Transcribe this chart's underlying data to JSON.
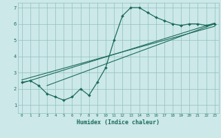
{
  "xlabel": "Humidex (Indice chaleur)",
  "bg_color": "#cce8e8",
  "grid_color": "#8fbfbf",
  "line_color": "#1a6b5a",
  "xlim": [
    -0.5,
    23.5
  ],
  "ylim": [
    0.5,
    7.3
  ],
  "xticks": [
    0,
    1,
    2,
    3,
    4,
    5,
    6,
    7,
    8,
    9,
    10,
    11,
    12,
    13,
    14,
    15,
    16,
    17,
    18,
    19,
    20,
    21,
    22,
    23
  ],
  "yticks": [
    1,
    2,
    3,
    4,
    5,
    6,
    7
  ],
  "main_x": [
    0,
    1,
    2,
    3,
    4,
    5,
    6,
    7,
    8,
    9,
    10,
    11,
    12,
    13,
    14,
    15,
    16,
    17,
    18,
    19,
    20,
    21,
    22,
    23
  ],
  "main_y": [
    2.4,
    2.5,
    2.2,
    1.7,
    1.5,
    1.3,
    1.5,
    2.0,
    1.6,
    2.4,
    3.3,
    5.0,
    6.5,
    7.0,
    7.0,
    6.7,
    6.4,
    6.2,
    6.0,
    5.9,
    6.0,
    6.0,
    5.9,
    6.0
  ],
  "line2_x": [
    0,
    23
  ],
  "line2_y": [
    2.35,
    6.05
  ],
  "line3_x": [
    0,
    23
  ],
  "line3_y": [
    2.55,
    5.85
  ],
  "line4_x": [
    3,
    23
  ],
  "line4_y": [
    2.2,
    6.0
  ]
}
